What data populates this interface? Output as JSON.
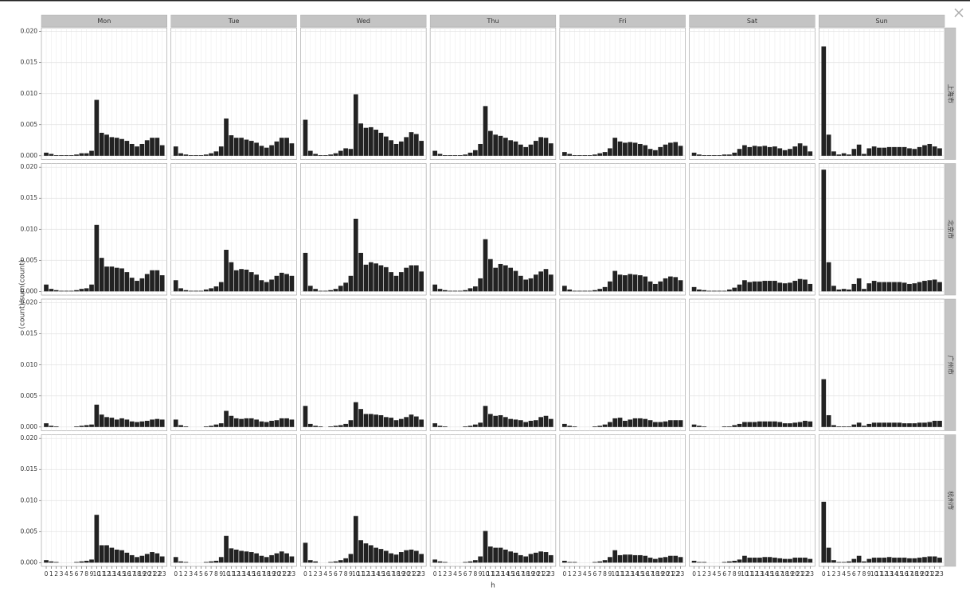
{
  "chart_data": {
    "type": "bar",
    "ylabel": "(count)/sum(count)",
    "xlabel": "h",
    "columns": [
      "Mon",
      "Tue",
      "Wed",
      "Thu",
      "Fri",
      "Sat",
      "Sun"
    ],
    "rows": [
      "上海市",
      "北京市",
      "广州市",
      "杭州市"
    ],
    "categories": [
      0,
      1,
      2,
      3,
      4,
      5,
      6,
      7,
      8,
      9,
      10,
      11,
      12,
      13,
      14,
      15,
      16,
      17,
      18,
      19,
      20,
      21,
      22,
      23
    ],
    "ylim": [
      -0.0006,
      0.0206
    ],
    "yticks": [
      {
        "value": 0,
        "label": "0.000"
      },
      {
        "value": 0.005,
        "label": "0.005"
      },
      {
        "value": 0.01,
        "label": "0.010"
      },
      {
        "value": 0.015,
        "label": "0.015"
      },
      {
        "value": 0.02,
        "label": "0.020"
      }
    ],
    "grid": true,
    "color": "#222222",
    "panels": [
      [
        [
          0.0005,
          0.0003,
          0.0001,
          0.0001,
          0.0001,
          0.0001,
          0.0002,
          0.0004,
          0.0004,
          0.0008,
          0.009,
          0.0037,
          0.0034,
          0.003,
          0.0029,
          0.0027,
          0.0024,
          0.0019,
          0.0015,
          0.0019,
          0.0025,
          0.0029,
          0.0029,
          0.0017
        ],
        [
          0.0015,
          0.0004,
          0.0002,
          0.0001,
          0.0001,
          0.0001,
          0.0002,
          0.0004,
          0.0007,
          0.0015,
          0.006,
          0.0033,
          0.0029,
          0.0029,
          0.0026,
          0.0024,
          0.0021,
          0.0016,
          0.0013,
          0.0017,
          0.0023,
          0.0029,
          0.0029,
          0.002
        ],
        [
          0.0058,
          0.0008,
          0.0003,
          0.0001,
          0.0001,
          0.0002,
          0.0004,
          0.0008,
          0.0012,
          0.0011,
          0.0099,
          0.0052,
          0.0045,
          0.0046,
          0.0042,
          0.0037,
          0.0031,
          0.0025,
          0.0019,
          0.0023,
          0.003,
          0.0038,
          0.0035,
          0.0024
        ],
        [
          0.0008,
          0.0003,
          0.0001,
          0.0001,
          0.0001,
          0.0001,
          0.0002,
          0.0005,
          0.0009,
          0.0019,
          0.008,
          0.004,
          0.0034,
          0.0032,
          0.0029,
          0.0025,
          0.0023,
          0.0018,
          0.0014,
          0.0018,
          0.0024,
          0.003,
          0.0029,
          0.002
        ],
        [
          0.0006,
          0.0003,
          0.0001,
          0.0001,
          0.0001,
          0.0001,
          0.0002,
          0.0004,
          0.0006,
          0.0012,
          0.0029,
          0.0023,
          0.0021,
          0.0022,
          0.0021,
          0.0019,
          0.0017,
          0.0011,
          0.0009,
          0.0014,
          0.0018,
          0.0021,
          0.0022,
          0.0016
        ],
        [
          0.0005,
          0.0002,
          0.0001,
          0.0001,
          0.0001,
          0.0001,
          0.0002,
          0.0002,
          0.0005,
          0.0011,
          0.0017,
          0.0014,
          0.0016,
          0.0015,
          0.0016,
          0.0014,
          0.0015,
          0.0012,
          0.0009,
          0.0011,
          0.0015,
          0.002,
          0.0016,
          0.0007
        ],
        [
          0.0176,
          0.0034,
          0.0007,
          0.0002,
          0.0004,
          0.0002,
          0.0011,
          0.0018,
          0.0003,
          0.0012,
          0.0015,
          0.0013,
          0.0013,
          0.0014,
          0.0014,
          0.0014,
          0.0014,
          0.0012,
          0.0011,
          0.0014,
          0.0017,
          0.0019,
          0.0015,
          0.0012
        ]
      ],
      [
        [
          0.0011,
          0.0004,
          0.0002,
          0.0001,
          0.0001,
          0.0001,
          0.0002,
          0.0004,
          0.0005,
          0.0011,
          0.0107,
          0.0054,
          0.004,
          0.004,
          0.0038,
          0.0037,
          0.0031,
          0.0022,
          0.0017,
          0.0021,
          0.0028,
          0.0034,
          0.0034,
          0.0026
        ],
        [
          0.0018,
          0.0005,
          0.0002,
          0.0001,
          0.0001,
          0.0001,
          0.0003,
          0.0005,
          0.0008,
          0.0015,
          0.0067,
          0.0047,
          0.0034,
          0.0036,
          0.0035,
          0.0031,
          0.0027,
          0.0018,
          0.0015,
          0.0019,
          0.0025,
          0.003,
          0.0028,
          0.0025
        ],
        [
          0.0062,
          0.0009,
          0.0004,
          0.0001,
          0.0001,
          0.0002,
          0.0004,
          0.0009,
          0.0014,
          0.0025,
          0.0117,
          0.0062,
          0.0043,
          0.0047,
          0.0045,
          0.0042,
          0.0039,
          0.0031,
          0.0025,
          0.0031,
          0.0038,
          0.0042,
          0.0042,
          0.0032
        ],
        [
          0.0011,
          0.0004,
          0.0002,
          0.0001,
          0.0001,
          0.0001,
          0.0002,
          0.0005,
          0.0008,
          0.0021,
          0.0084,
          0.0052,
          0.0038,
          0.0044,
          0.0042,
          0.0038,
          0.0033,
          0.0025,
          0.0019,
          0.0021,
          0.0027,
          0.0032,
          0.0036,
          0.0027
        ],
        [
          0.0009,
          0.0003,
          0.0001,
          0.0001,
          0.0001,
          0.0001,
          0.0002,
          0.0004,
          0.0007,
          0.0016,
          0.0033,
          0.0027,
          0.0026,
          0.0028,
          0.0027,
          0.0026,
          0.0024,
          0.0016,
          0.0012,
          0.0016,
          0.0021,
          0.0024,
          0.0023,
          0.0018
        ],
        [
          0.0007,
          0.0003,
          0.0002,
          0.0001,
          0.0001,
          0.0001,
          0.0001,
          0.0003,
          0.0006,
          0.0011,
          0.0018,
          0.0015,
          0.0016,
          0.0016,
          0.0017,
          0.0017,
          0.0017,
          0.0014,
          0.0013,
          0.0014,
          0.0017,
          0.002,
          0.0019,
          0.0012
        ],
        [
          0.0196,
          0.0047,
          0.0009,
          0.0003,
          0.0004,
          0.0003,
          0.0012,
          0.0021,
          0.0004,
          0.0013,
          0.0017,
          0.0015,
          0.0015,
          0.0015,
          0.0015,
          0.0015,
          0.0014,
          0.0012,
          0.0013,
          0.0015,
          0.0017,
          0.0018,
          0.0019,
          0.0015
        ]
      ],
      [
        [
          0.0006,
          0.0002,
          0.0001,
          0,
          0,
          0,
          0.0001,
          0.0002,
          0.0003,
          0.0004,
          0.0036,
          0.002,
          0.0016,
          0.0015,
          0.0012,
          0.0014,
          0.0012,
          0.0009,
          0.0008,
          0.0009,
          0.001,
          0.0012,
          0.0013,
          0.0012
        ],
        [
          0.0012,
          0.0003,
          0.0001,
          0,
          0,
          0,
          0.0001,
          0.0002,
          0.0004,
          0.0006,
          0.0026,
          0.0018,
          0.0014,
          0.0013,
          0.0014,
          0.0014,
          0.0012,
          0.0009,
          0.0008,
          0.001,
          0.0011,
          0.0014,
          0.0014,
          0.0012
        ],
        [
          0.0034,
          0.0005,
          0.0002,
          0.0001,
          0,
          0.0001,
          0.0002,
          0.0003,
          0.0005,
          0.0011,
          0.004,
          0.0029,
          0.0021,
          0.0021,
          0.002,
          0.0019,
          0.0016,
          0.0015,
          0.0011,
          0.0013,
          0.0016,
          0.002,
          0.0017,
          0.0012
        ],
        [
          0.0006,
          0.0002,
          0.0001,
          0,
          0,
          0,
          0.0001,
          0.0002,
          0.0004,
          0.0007,
          0.0034,
          0.0021,
          0.0018,
          0.0019,
          0.0016,
          0.0013,
          0.0012,
          0.0011,
          0.0008,
          0.001,
          0.0011,
          0.0016,
          0.0018,
          0.0013
        ],
        [
          0.0005,
          0.0002,
          0.0001,
          0,
          0,
          0,
          0.0001,
          0.0002,
          0.0004,
          0.0008,
          0.0014,
          0.0015,
          0.001,
          0.0012,
          0.0014,
          0.0014,
          0.0013,
          0.0011,
          0.0008,
          0.0008,
          0.0009,
          0.0011,
          0.0011,
          0.0011
        ],
        [
          0.0004,
          0.0002,
          0.0001,
          0,
          0,
          0,
          0.0001,
          0.0001,
          0.0003,
          0.0005,
          0.0008,
          0.0008,
          0.0008,
          0.0009,
          0.0009,
          0.0009,
          0.0009,
          0.0008,
          0.0006,
          0.0006,
          0.0007,
          0.0008,
          0.001,
          0.0009
        ],
        [
          0.0077,
          0.0019,
          0.0003,
          0.0001,
          0.0001,
          0.0001,
          0.0004,
          0.0007,
          0.0002,
          0.0005,
          0.0007,
          0.0007,
          0.0007,
          0.0007,
          0.0007,
          0.0007,
          0.0006,
          0.0006,
          0.0006,
          0.0007,
          0.0007,
          0.0008,
          0.001,
          0.001
        ]
      ],
      [
        [
          0.0004,
          0.0002,
          0.0001,
          0,
          0,
          0,
          0.0001,
          0.0002,
          0.0003,
          0.0005,
          0.0077,
          0.0028,
          0.0028,
          0.0024,
          0.0021,
          0.002,
          0.0016,
          0.0012,
          0.0009,
          0.0011,
          0.0014,
          0.0017,
          0.0015,
          0.001
        ],
        [
          0.0009,
          0.0002,
          0.0001,
          0,
          0,
          0,
          0.0001,
          0.0002,
          0.0003,
          0.0009,
          0.0043,
          0.0023,
          0.0021,
          0.0019,
          0.0018,
          0.0017,
          0.0015,
          0.0011,
          0.0009,
          0.0012,
          0.0015,
          0.0018,
          0.0015,
          0.001
        ],
        [
          0.0032,
          0.0004,
          0.0002,
          0,
          0,
          0.0001,
          0.0002,
          0.0004,
          0.0007,
          0.0014,
          0.0075,
          0.0036,
          0.0031,
          0.0028,
          0.0024,
          0.0022,
          0.0019,
          0.0015,
          0.0013,
          0.0017,
          0.002,
          0.0021,
          0.0019,
          0.0014
        ],
        [
          0.0005,
          0.0002,
          0.0001,
          0,
          0,
          0,
          0.0001,
          0.0002,
          0.0004,
          0.001,
          0.0051,
          0.0026,
          0.0024,
          0.0024,
          0.0021,
          0.0018,
          0.0016,
          0.0012,
          0.001,
          0.0014,
          0.0016,
          0.0018,
          0.0017,
          0.0012
        ],
        [
          0.0003,
          0.0001,
          0.0001,
          0,
          0,
          0,
          0.0001,
          0.0002,
          0.0004,
          0.0009,
          0.002,
          0.0012,
          0.0013,
          0.0013,
          0.0012,
          0.0012,
          0.0011,
          0.0008,
          0.0006,
          0.0008,
          0.0009,
          0.0011,
          0.0011,
          0.0009
        ],
        [
          0.0003,
          0.0001,
          0.0001,
          0,
          0,
          0,
          0.0001,
          0.0002,
          0.0003,
          0.0005,
          0.0011,
          0.0008,
          0.0008,
          0.0008,
          0.0009,
          0.0009,
          0.0008,
          0.0007,
          0.0006,
          0.0006,
          0.0008,
          0.0008,
          0.0008,
          0.0006
        ],
        [
          0.0098,
          0.0024,
          0.0004,
          0.0001,
          0.0001,
          0.0002,
          0.0006,
          0.0011,
          0.0002,
          0.0006,
          0.0008,
          0.0008,
          0.0008,
          0.0009,
          0.0008,
          0.0008,
          0.0008,
          0.0007,
          0.0007,
          0.0008,
          0.0009,
          0.001,
          0.001,
          0.0008
        ]
      ]
    ]
  }
}
